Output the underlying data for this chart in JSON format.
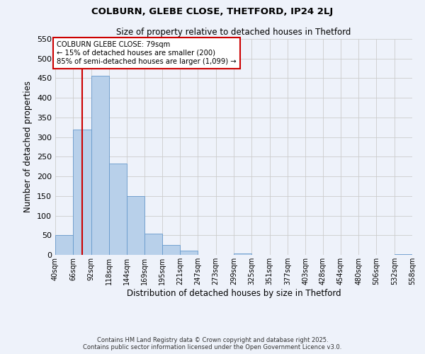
{
  "title": "COLBURN, GLEBE CLOSE, THETFORD, IP24 2LJ",
  "subtitle": "Size of property relative to detached houses in Thetford",
  "xlabel": "Distribution of detached houses by size in Thetford",
  "ylabel": "Number of detached properties",
  "bar_values": [
    50,
    320,
    457,
    232,
    150,
    54,
    25,
    10,
    0,
    0,
    4,
    0,
    0,
    0,
    0,
    0,
    0,
    0,
    0,
    2
  ],
  "bin_edges": [
    40,
    66,
    92,
    118,
    144,
    169,
    195,
    221,
    247,
    273,
    299,
    325,
    351,
    377,
    403,
    428,
    454,
    480,
    506,
    532,
    558
  ],
  "bin_labels": [
    "40sqm",
    "66sqm",
    "92sqm",
    "118sqm",
    "144sqm",
    "169sqm",
    "195sqm",
    "221sqm",
    "247sqm",
    "273sqm",
    "299sqm",
    "325sqm",
    "351sqm",
    "377sqm",
    "403sqm",
    "428sqm",
    "454sqm",
    "480sqm",
    "506sqm",
    "532sqm",
    "558sqm"
  ],
  "bar_color": "#b8d0ea",
  "bar_edge_color": "#6699cc",
  "ylim": [
    0,
    550
  ],
  "yticks": [
    0,
    50,
    100,
    150,
    200,
    250,
    300,
    350,
    400,
    450,
    500,
    550
  ],
  "grid_color": "#cccccc",
  "background_color": "#eef2fa",
  "property_size": 79,
  "property_line_color": "#cc0000",
  "annotation_title": "COLBURN GLEBE CLOSE: 79sqm",
  "annotation_line1": "← 15% of detached houses are smaller (200)",
  "annotation_line2": "85% of semi-detached houses are larger (1,099) →",
  "annotation_box_color": "#ffffff",
  "annotation_box_edge": "#cc0000",
  "footer_line1": "Contains HM Land Registry data © Crown copyright and database right 2025.",
  "footer_line2": "Contains public sector information licensed under the Open Government Licence v3.0."
}
